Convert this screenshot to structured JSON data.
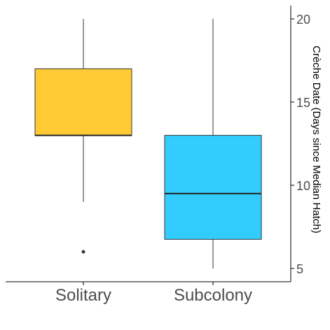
{
  "chart_data": {
    "type": "box",
    "categories": [
      "Solitary",
      "Subcolony"
    ],
    "series": [
      {
        "category": "Solitary",
        "min": 9,
        "q1": 13,
        "median": 13,
        "q3": 17,
        "max": 20,
        "outliers": [
          6
        ],
        "color": "#FFCA33"
      },
      {
        "category": "Subcolony",
        "min": 5,
        "q1": 6.75,
        "median": 9.5,
        "q3": 13,
        "max": 20,
        "outliers": [],
        "color": "#33CCFF"
      }
    ],
    "ylabel": "Crèche Date (Days since Median Hatch)",
    "xlabel": "",
    "yticks": [
      5,
      10,
      15,
      20
    ],
    "ylim": [
      4.2,
      20.8
    ],
    "y_axis_position": "right",
    "grid": false
  }
}
